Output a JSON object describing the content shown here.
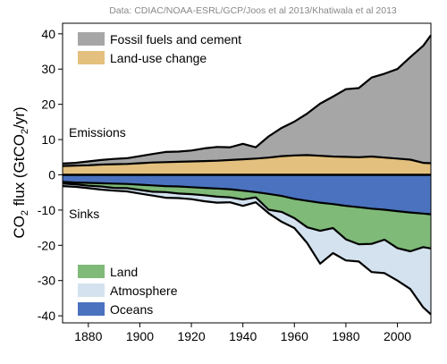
{
  "chart_data": {
    "type": "area",
    "source_note": "Data: CDIAC/NOAA-ESRL/GCP/Joos et al 2013/Khatiwala et al 2013",
    "ylabel_main": "CO",
    "ylabel_sub": "2",
    "ylabel_mid": " flux (GtCO",
    "ylabel_sub2": "2",
    "ylabel_end": "/yr)",
    "annotations": {
      "emissions": "Emissions",
      "sinks": "Sinks"
    },
    "xlim": [
      1870,
      2013
    ],
    "ylim": [
      -42,
      43
    ],
    "x_ticks": [
      1880,
      1900,
      1920,
      1940,
      1960,
      1980,
      2000
    ],
    "y_ticks": [
      40,
      30,
      20,
      10,
      0,
      -10,
      -20,
      -30,
      -40
    ],
    "grid": false,
    "legend_top": {
      "placement": "top-left",
      "entries": [
        "Fossil fuels and cement",
        "Land-use change"
      ]
    },
    "legend_bottom": {
      "placement": "bottom-left",
      "entries": [
        "Land",
        "Atmosphere",
        "Oceans"
      ]
    },
    "colors": {
      "fossil": "#a6a6a6",
      "landuse": "#e3c07e",
      "land": "#7fba78",
      "atmosphere": "#d3e2ee",
      "oceans": "#4a72bf",
      "outline": "#000000"
    },
    "x": [
      1870,
      1875,
      1880,
      1885,
      1890,
      1895,
      1900,
      1905,
      1910,
      1915,
      1920,
      1925,
      1930,
      1935,
      1940,
      1945,
      1950,
      1955,
      1960,
      1965,
      1970,
      1975,
      1980,
      1985,
      1990,
      1995,
      2000,
      2005,
      2010,
      2013
    ],
    "series": [
      {
        "name": "Land-use change",
        "key": "landuse",
        "values": [
          2.5,
          2.6,
          2.7,
          2.9,
          3.0,
          3.1,
          3.3,
          3.5,
          3.6,
          3.7,
          3.8,
          3.9,
          4.0,
          4.2,
          4.4,
          4.6,
          4.9,
          5.3,
          5.5,
          5.6,
          5.4,
          5.2,
          5.1,
          5.0,
          5.2,
          4.9,
          4.6,
          4.3,
          3.4,
          3.3
        ]
      },
      {
        "name": "Fossil fuels and cement",
        "key": "fossil",
        "values": [
          0.7,
          0.8,
          1.1,
          1.3,
          1.5,
          1.6,
          2.0,
          2.4,
          2.9,
          2.9,
          3.1,
          3.6,
          3.9,
          3.6,
          4.4,
          3.2,
          6.0,
          8.0,
          9.6,
          11.8,
          14.8,
          17.0,
          19.2,
          19.6,
          22.4,
          23.8,
          25.4,
          29.1,
          33.2,
          36.3
        ]
      },
      {
        "name": "Oceans",
        "key": "oceans",
        "values": [
          -2.0,
          -2.2,
          -2.3,
          -2.4,
          -2.5,
          -2.6,
          -2.8,
          -3.0,
          -3.2,
          -3.3,
          -3.5,
          -3.7,
          -3.9,
          -4.1,
          -4.5,
          -4.9,
          -5.4,
          -6.0,
          -6.8,
          -7.4,
          -7.9,
          -8.3,
          -8.8,
          -9.2,
          -9.6,
          -9.9,
          -10.3,
          -10.7,
          -11.0,
          -11.2
        ]
      },
      {
        "name": "Land",
        "key": "land",
        "values": [
          -0.5,
          -0.5,
          -0.8,
          -0.9,
          -1.2,
          -1.2,
          -1.5,
          -1.8,
          -1.7,
          -2.0,
          -2.0,
          -2.1,
          -2.3,
          -2.3,
          -2.5,
          -1.5,
          -4.5,
          -4.5,
          -5.5,
          -7.5,
          -8.0,
          -6.8,
          -9.5,
          -10.5,
          -10.0,
          -8.5,
          -10.5,
          -11.0,
          -9.5,
          -9.7
        ]
      },
      {
        "name": "Atmosphere",
        "key": "atmosphere",
        "values": [
          -0.7,
          -0.7,
          -0.7,
          -0.9,
          -0.8,
          -0.9,
          -1.0,
          -1.1,
          -1.6,
          -1.3,
          -1.4,
          -1.7,
          -1.7,
          -1.4,
          -1.8,
          -1.4,
          -1.0,
          -2.8,
          -2.8,
          -4.5,
          -9.3,
          -7.1,
          -6.0,
          -4.9,
          -8.0,
          -9.5,
          -9.2,
          -10.7,
          -17.1,
          -18.7
        ]
      }
    ]
  }
}
